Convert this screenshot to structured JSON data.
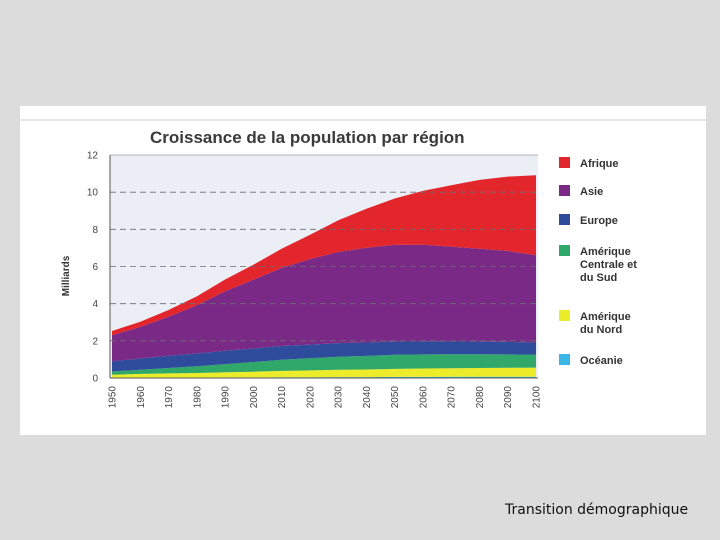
{
  "footer": {
    "caption": "Transition démographique"
  },
  "chart_data": {
    "type": "area",
    "stacked": true,
    "title": "Croissance de la population par région",
    "ylabel": "Milliards",
    "xlabel": "",
    "ylim": [
      0,
      12
    ],
    "yticks": [
      0,
      2,
      4,
      6,
      8,
      10,
      12
    ],
    "x": [
      1950,
      1960,
      1970,
      1980,
      1990,
      2000,
      2010,
      2020,
      2030,
      2040,
      2050,
      2060,
      2070,
      2080,
      2090,
      2100
    ],
    "legend_position": "right",
    "series": [
      {
        "name": "Océanie",
        "color": "#3ab7e6",
        "values": [
          0.01,
          0.02,
          0.02,
          0.02,
          0.03,
          0.03,
          0.04,
          0.04,
          0.05,
          0.05,
          0.06,
          0.06,
          0.07,
          0.07,
          0.07,
          0.07
        ]
      },
      {
        "name": "Amérique du Nord",
        "color": "#ecec2a",
        "values": [
          0.17,
          0.2,
          0.23,
          0.25,
          0.28,
          0.31,
          0.34,
          0.37,
          0.39,
          0.41,
          0.43,
          0.45,
          0.46,
          0.47,
          0.48,
          0.49
        ]
      },
      {
        "name": "Amérique Centrale et du Sud",
        "color": "#2fa86a",
        "values": [
          0.17,
          0.22,
          0.29,
          0.36,
          0.44,
          0.52,
          0.6,
          0.65,
          0.7,
          0.73,
          0.76,
          0.76,
          0.75,
          0.74,
          0.72,
          0.7
        ]
      },
      {
        "name": "Europe",
        "color": "#2f4b9c",
        "values": [
          0.55,
          0.61,
          0.66,
          0.69,
          0.72,
          0.73,
          0.74,
          0.74,
          0.74,
          0.72,
          0.71,
          0.7,
          0.69,
          0.68,
          0.67,
          0.65
        ]
      },
      {
        "name": "Asie",
        "color": "#7a2a86",
        "values": [
          1.4,
          1.7,
          2.1,
          2.6,
          3.2,
          3.7,
          4.2,
          4.6,
          4.9,
          5.1,
          5.2,
          5.2,
          5.1,
          5.0,
          4.9,
          4.7
        ]
      },
      {
        "name": "Afrique",
        "color": "#e3262b",
        "values": [
          0.23,
          0.28,
          0.36,
          0.47,
          0.63,
          0.8,
          1.03,
          1.3,
          1.7,
          2.1,
          2.5,
          2.9,
          3.3,
          3.7,
          4.0,
          4.3
        ]
      }
    ],
    "legend": [
      {
        "label": "Afrique",
        "color": "#e3262b"
      },
      {
        "label": "Asie",
        "color": "#7a2a86"
      },
      {
        "label": "Europe",
        "color": "#2f4b9c"
      },
      {
        "label": "Amérique Centrale et du Sud",
        "color": "#2fa86a",
        "lines": [
          "Amérique",
          "Centrale et",
          "du Sud"
        ]
      },
      {
        "label": "Amérique du Nord",
        "color": "#ecec2a",
        "lines": [
          "Amérique",
          "du Nord"
        ]
      },
      {
        "label": "Océanie",
        "color": "#3ab7e6"
      }
    ]
  }
}
